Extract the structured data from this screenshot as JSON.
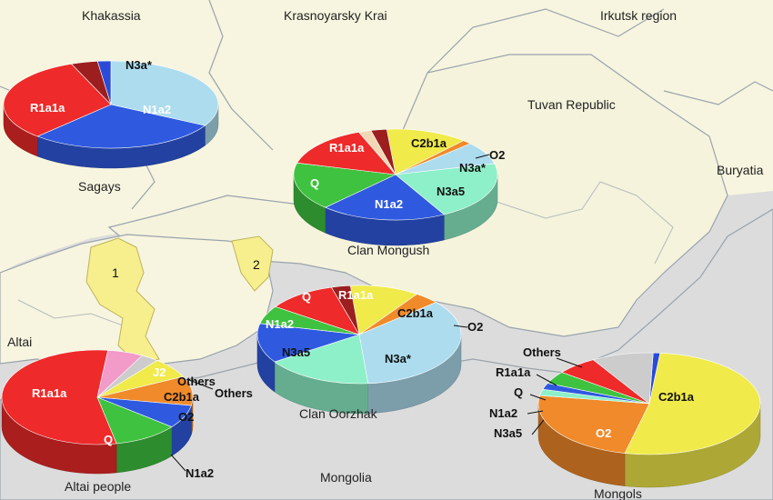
{
  "map": {
    "regions": {
      "khakassia": "Khakassia",
      "krasnoyarsky": "Krasnoyarsky Krai",
      "irkutsk": "Irkutsk region",
      "tuva": "Tuvan Republic",
      "buryatia": "Buryatia",
      "altai": "Altai",
      "mongolia": "Mongolia"
    },
    "areas": {
      "a1": "1",
      "a2": "2"
    },
    "colors": {
      "land": "#f7f5df",
      "outside": "#dcdcdc",
      "border": "#9aa3ad",
      "highlight": "#f7ef8e"
    }
  },
  "chart_data": [
    {
      "type": "pie",
      "title": "Sagays",
      "slices": [
        {
          "label": "N3a*",
          "value": 33,
          "color": "#acdcee"
        },
        {
          "label": "N1a2",
          "value": 29,
          "color": "#2f5ae0"
        },
        {
          "label": "R1a1a",
          "value": 32,
          "color": "#ee2a2a"
        },
        {
          "label": "",
          "value": 4,
          "color": "#9c1e1e"
        },
        {
          "label": "",
          "value": 2,
          "color": "#2a4bd7"
        }
      ]
    },
    {
      "type": "pie",
      "title": "Clan Mongush",
      "slices": [
        {
          "label": "C2b1a",
          "value": 13,
          "color": "#f0ea4a"
        },
        {
          "label": "O2",
          "value": 1.5,
          "color": "#f08a2a"
        },
        {
          "label": "N3a*",
          "value": 8,
          "color": "#acdcee"
        },
        {
          "label": "N3a5",
          "value": 21,
          "color": "#8ef0c8"
        },
        {
          "label": "N1a2",
          "value": 20,
          "color": "#2f5ae0"
        },
        {
          "label": "Q",
          "value": 17,
          "color": "#3fc23f"
        },
        {
          "label": "R1a1a",
          "value": 15,
          "color": "#ee2a2a"
        },
        {
          "label": "",
          "value": 2,
          "color": "#f3d7b5"
        },
        {
          "label": "",
          "value": 2.5,
          "color": "#9c1e1e"
        }
      ]
    },
    {
      "type": "pie",
      "title": "Clan Oorzhak",
      "slices": [
        {
          "label": "C2b1a",
          "value": 11,
          "color": "#f0ea4a"
        },
        {
          "label": "O2",
          "value": 4,
          "color": "#f08a2a"
        },
        {
          "label": "N3a*",
          "value": 35,
          "color": "#acdcee"
        },
        {
          "label": "N3a5",
          "value": 17,
          "color": "#8ef0c8"
        },
        {
          "label": "N1a2",
          "value": 13,
          "color": "#2f5ae0"
        },
        {
          "label": "Q",
          "value": 6,
          "color": "#3fc23f"
        },
        {
          "label": "R1a1a",
          "value": 11,
          "color": "#ee2a2a"
        },
        {
          "label": "",
          "value": 3,
          "color": "#9c1e1e"
        }
      ]
    },
    {
      "type": "pie",
      "title": "Altai people",
      "slices": [
        {
          "label": "Others",
          "value": 3,
          "color": "#cccccc"
        },
        {
          "label": "C2b1a",
          "value": 7,
          "color": "#f0ea4a"
        },
        {
          "label": "O2",
          "value": 10,
          "color": "#f08a2a"
        },
        {
          "label": "N1a2",
          "value": 8,
          "color": "#2f5ae0"
        },
        {
          "label": "Q",
          "value": 11,
          "color": "#3fc23f"
        },
        {
          "label": "R1a1a",
          "value": 55,
          "color": "#ee2a2a"
        },
        {
          "label": "J2",
          "value": 6,
          "color": "#f29ac8"
        }
      ]
    },
    {
      "type": "pie",
      "title": "Mongols",
      "slices": [
        {
          "label": "",
          "value": 1,
          "color": "#2a4bd7"
        },
        {
          "label": "C2b1a",
          "value": 52,
          "color": "#f0ea4a"
        },
        {
          "label": "O2",
          "value": 24,
          "color": "#f08a2a"
        },
        {
          "label": "N3a5",
          "value": 2,
          "color": "#8ef0c8"
        },
        {
          "label": "N1a2",
          "value": 2,
          "color": "#2f5ae0"
        },
        {
          "label": "Q",
          "value": 4,
          "color": "#3fc23f"
        },
        {
          "label": "R1a1a",
          "value": 6,
          "color": "#ee2a2a"
        },
        {
          "label": "Others",
          "value": 9,
          "color": "#cccccc"
        }
      ]
    }
  ]
}
